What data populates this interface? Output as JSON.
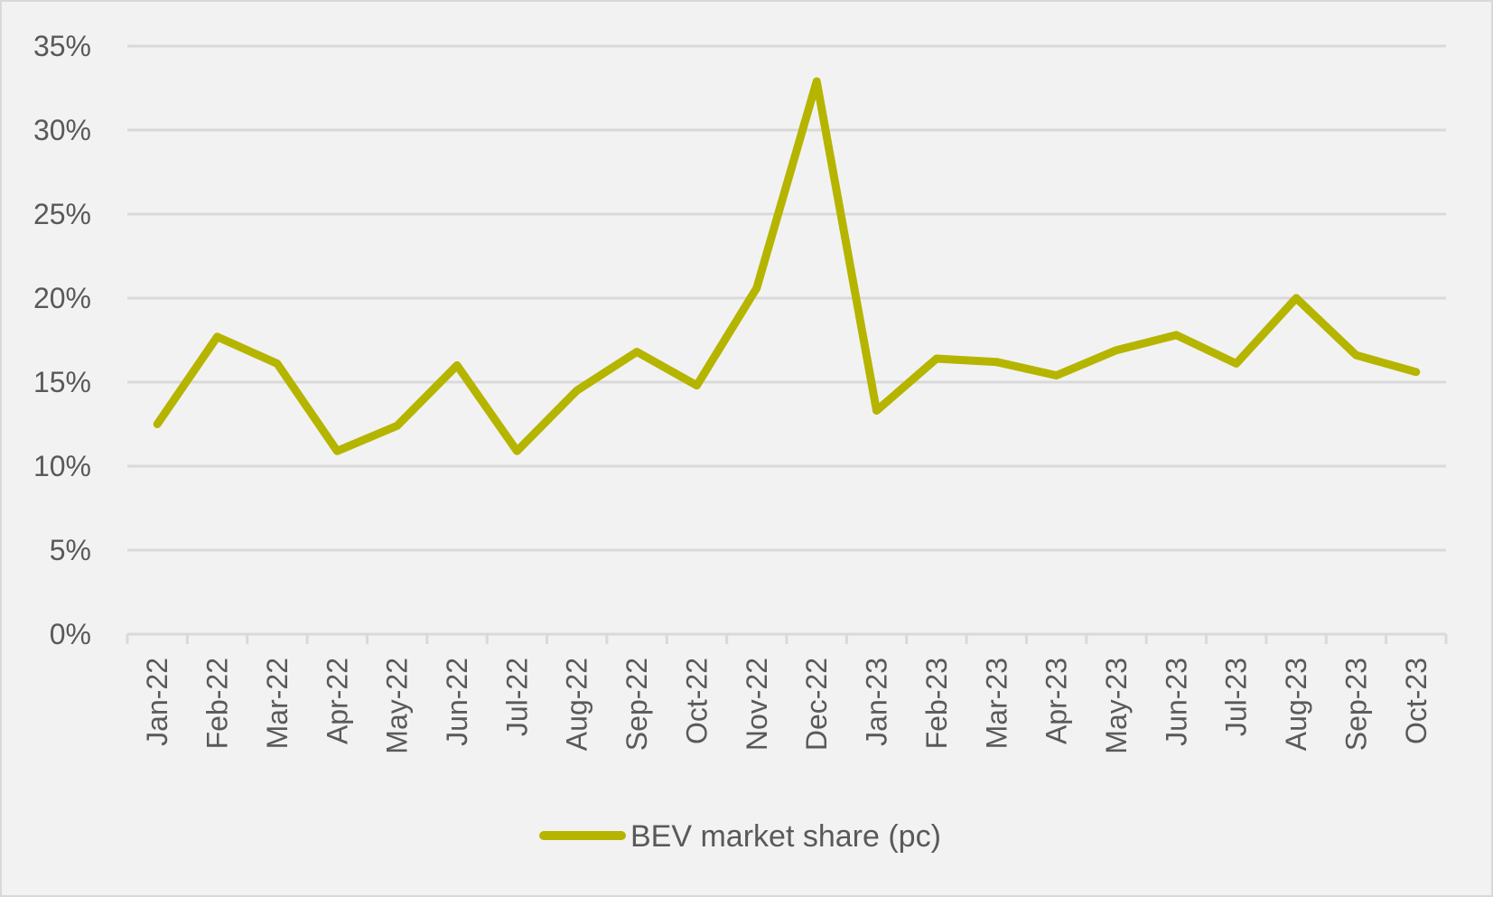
{
  "chart_data": {
    "type": "line",
    "title": "",
    "xlabel": "",
    "ylabel": "",
    "ylim": [
      0,
      0.35
    ],
    "y_ticks": [
      0,
      0.05,
      0.1,
      0.15,
      0.2,
      0.25,
      0.3,
      0.35
    ],
    "y_tick_labels": [
      "0%",
      "5%",
      "10%",
      "15%",
      "20%",
      "25%",
      "30%",
      "35%"
    ],
    "grid": true,
    "legend_position": "bottom",
    "categories": [
      "Jan-22",
      "Feb-22",
      "Mar-22",
      "Apr-22",
      "May-22",
      "Jun-22",
      "Jul-22",
      "Aug-22",
      "Sep-22",
      "Oct-22",
      "Nov-22",
      "Dec-22",
      "Jan-23",
      "Feb-23",
      "Mar-23",
      "Apr-23",
      "May-23",
      "Jun-23",
      "Jul-23",
      "Aug-23",
      "Sep-23",
      "Oct-23"
    ],
    "series": [
      {
        "name": "BEV market share (pc)",
        "color": "#b5b500",
        "values": [
          0.125,
          0.177,
          0.161,
          0.109,
          0.124,
          0.16,
          0.109,
          0.145,
          0.168,
          0.148,
          0.206,
          0.329,
          0.133,
          0.164,
          0.162,
          0.154,
          0.169,
          0.178,
          0.161,
          0.2,
          0.166,
          0.156
        ]
      }
    ]
  },
  "colors": {
    "background": "#f2f2f2",
    "gridline": "#d9d9d9",
    "text": "#595959",
    "series": "#b5b500"
  }
}
